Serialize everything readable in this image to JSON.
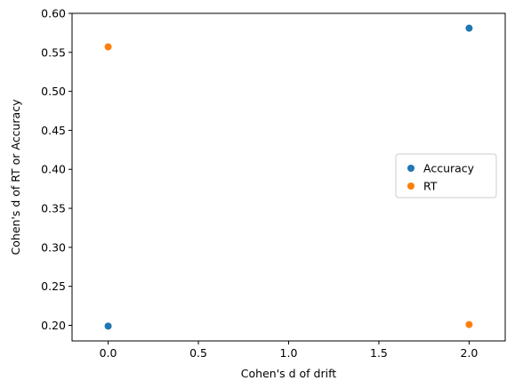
{
  "chart_data": {
    "type": "scatter",
    "title": "",
    "xlabel": "Cohen's d of drift",
    "ylabel": "Cohen's d of RT or Accuracy",
    "xlim": [
      -0.2,
      2.2
    ],
    "ylim": [
      0.18,
      0.6
    ],
    "xticks": [
      0.0,
      0.5,
      1.0,
      1.5,
      2.0
    ],
    "xtick_labels": [
      "0.0",
      "0.5",
      "1.0",
      "1.5",
      "2.0"
    ],
    "yticks": [
      0.2,
      0.25,
      0.3,
      0.35,
      0.4,
      0.45,
      0.5,
      0.55,
      0.6
    ],
    "ytick_labels": [
      "0.20",
      "0.25",
      "0.30",
      "0.35",
      "0.40",
      "0.45",
      "0.50",
      "0.55",
      "0.60"
    ],
    "grid": false,
    "legend_position": "right",
    "series": [
      {
        "name": "Accuracy",
        "color": "#1f77b4",
        "x": [
          0.0,
          2.0
        ],
        "y": [
          0.199,
          0.581
        ]
      },
      {
        "name": "RT",
        "color": "#ff7f0e",
        "x": [
          0.0,
          2.0
        ],
        "y": [
          0.557,
          0.201
        ]
      }
    ]
  }
}
